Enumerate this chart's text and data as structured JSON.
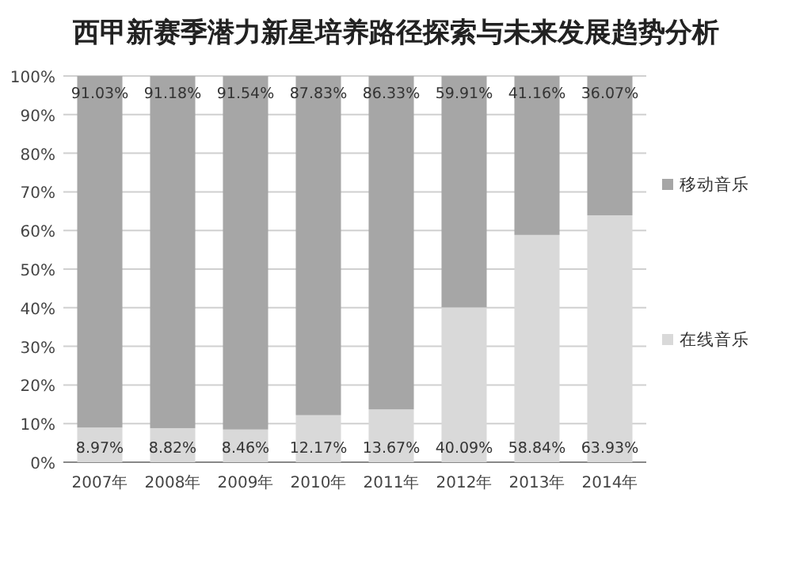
{
  "chart_data": {
    "type": "bar",
    "stacked": true,
    "title": "西甲新赛季潜力新星培养路径探索与未来发展趋势分析",
    "categories": [
      "2007年",
      "2008年",
      "2009年",
      "2010年",
      "2011年",
      "2012年",
      "2013年",
      "2014年"
    ],
    "series": [
      {
        "name": "在线音乐",
        "color": "#d9d9d9",
        "values": [
          8.97,
          8.82,
          8.46,
          12.17,
          13.67,
          40.09,
          58.84,
          63.93
        ],
        "value_labels": [
          "8.97%",
          "8.82%",
          "8.46%",
          "12.17%",
          "13.67%",
          "40.09%",
          "58.84%",
          "63.93%"
        ]
      },
      {
        "name": "移动音乐",
        "color": "#a6a6a6",
        "values": [
          91.03,
          91.18,
          91.54,
          87.83,
          86.33,
          59.91,
          41.16,
          36.07
        ],
        "value_labels": [
          "91.03%",
          "91.18%",
          "91.54%",
          "87.83%",
          "86.33%",
          "59.91%",
          "41.16%",
          "36.07%"
        ]
      }
    ],
    "ylim": [
      0,
      100
    ],
    "yticks": [
      {
        "value": 0,
        "label": "0%"
      },
      {
        "value": 10,
        "label": "10%"
      },
      {
        "value": 20,
        "label": "20%"
      },
      {
        "value": 30,
        "label": "30%"
      },
      {
        "value": 40,
        "label": "40%"
      },
      {
        "value": 50,
        "label": "50%"
      },
      {
        "value": 60,
        "label": "60%"
      },
      {
        "value": 70,
        "label": "70%"
      },
      {
        "value": 80,
        "label": "80%"
      },
      {
        "value": 90,
        "label": "90%"
      },
      {
        "value": 100,
        "label": "100%"
      }
    ],
    "grid": "y",
    "legend": "right"
  }
}
